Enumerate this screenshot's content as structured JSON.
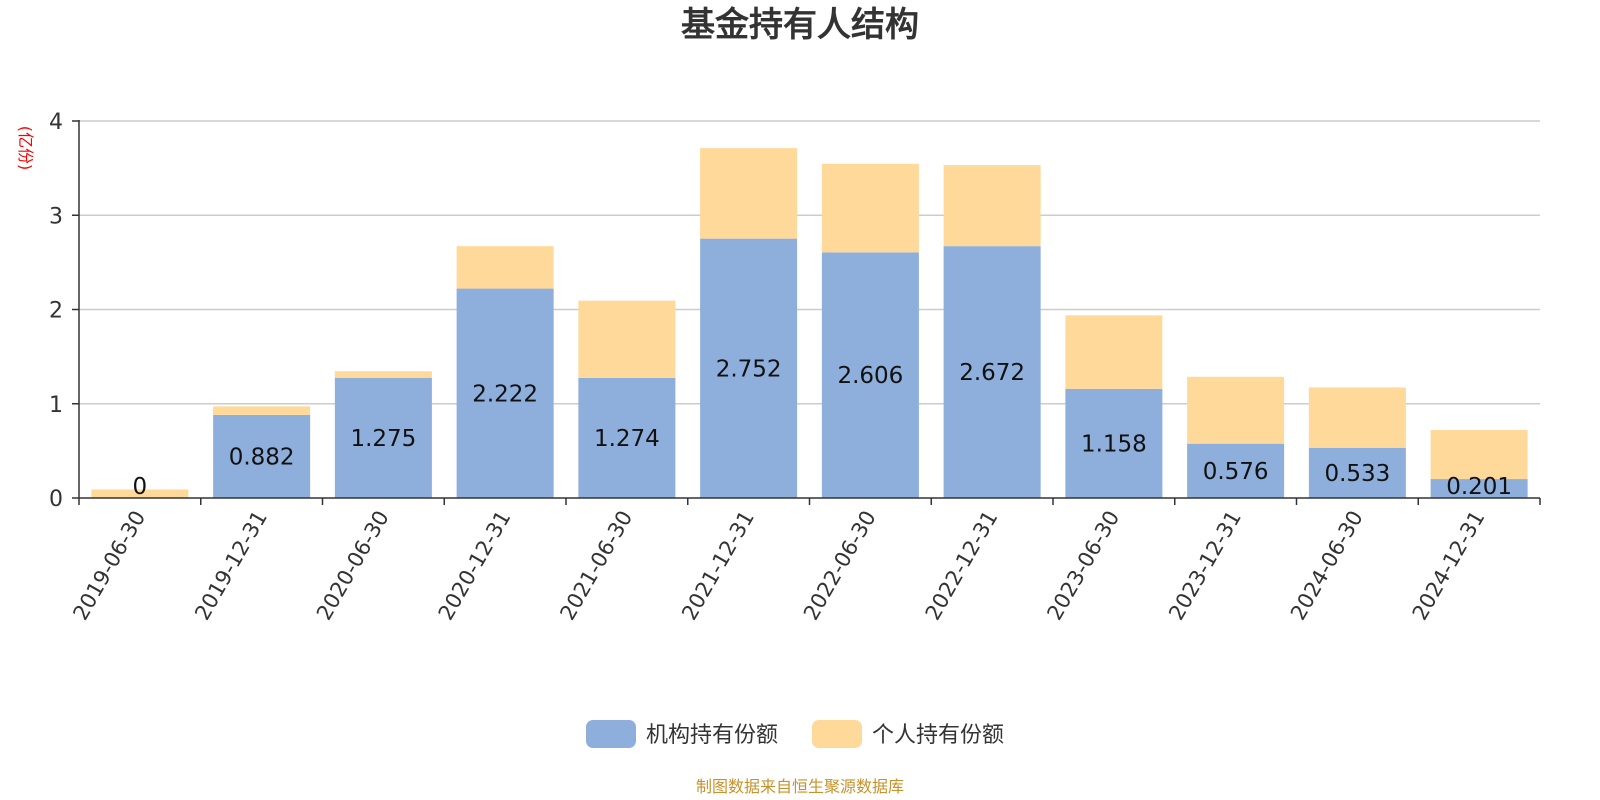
{
  "chart_data": {
    "type": "bar",
    "stacked": true,
    "title": "基金持有人结构",
    "ylabel": "(亿份)",
    "ylim": [
      0,
      4
    ],
    "yticks": [
      0,
      1,
      2,
      3,
      4
    ],
    "grid": true,
    "legend_position": "bottom-center",
    "categories": [
      "2019-06-30",
      "2019-12-31",
      "2020-06-30",
      "2020-12-31",
      "2021-06-30",
      "2021-12-31",
      "2022-06-30",
      "2022-12-31",
      "2023-06-30",
      "2023-12-31",
      "2024-06-30",
      "2024-12-31"
    ],
    "series": [
      {
        "name": "机构持有份额",
        "color": "#8eaedb",
        "values": [
          0,
          0.882,
          1.275,
          2.222,
          1.274,
          2.752,
          2.606,
          2.672,
          1.158,
          0.576,
          0.533,
          0.201
        ],
        "labels": [
          "0",
          "0.882",
          "1.275",
          "2.222",
          "1.274",
          "2.752",
          "2.606",
          "2.672",
          "1.158",
          "0.576",
          "0.533",
          "0.201"
        ]
      },
      {
        "name": "个人持有份额",
        "color": "#ffd999",
        "values": [
          0.09,
          0.09,
          0.07,
          0.45,
          0.82,
          0.96,
          0.94,
          0.86,
          0.78,
          0.71,
          0.64,
          0.52
        ]
      }
    ],
    "source": "制图数据来自恒生聚源数据库",
    "unit_color": "#ff0000",
    "source_color": "#c8922a"
  }
}
